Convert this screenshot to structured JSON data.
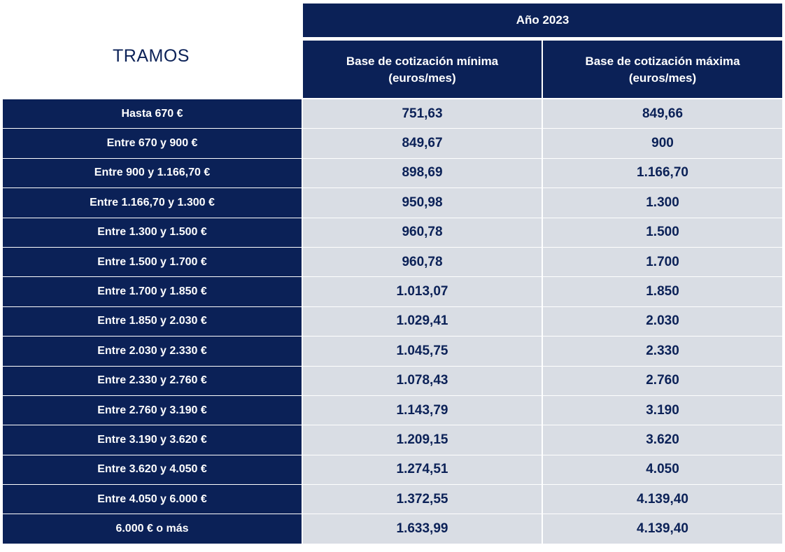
{
  "title": "TRAMOS",
  "header": {
    "year": "Año 2023",
    "min_line1": "Base de cotización mínima",
    "min_line2": "(euros/mes)",
    "max_line1": "Base de cotización máxima",
    "max_line2": "(euros/mes)"
  },
  "rows": [
    {
      "tramo": "Hasta 670 €",
      "min": "751,63",
      "max": "849,66"
    },
    {
      "tramo": "Entre 670 y 900 €",
      "min": "849,67",
      "max": "900"
    },
    {
      "tramo": "Entre 900 y 1.166,70 €",
      "min": "898,69",
      "max": "1.166,70"
    },
    {
      "tramo": "Entre 1.166,70 y 1.300 €",
      "min": "950,98",
      "max": "1.300"
    },
    {
      "tramo": "Entre 1.300 y 1.500 €",
      "min": "960,78",
      "max": "1.500"
    },
    {
      "tramo": "Entre 1.500 y 1.700 €",
      "min": "960,78",
      "max": "1.700"
    },
    {
      "tramo": "Entre 1.700 y 1.850 €",
      "min": "1.013,07",
      "max": "1.850"
    },
    {
      "tramo": "Entre 1.850 y 2.030 €",
      "min": "1.029,41",
      "max": "2.030"
    },
    {
      "tramo": "Entre 2.030 y 2.330 €",
      "min": "1.045,75",
      "max": "2.330"
    },
    {
      "tramo": "Entre 2.330 y 2.760 €",
      "min": "1.078,43",
      "max": "2.760"
    },
    {
      "tramo": "Entre 2.760 y 3.190 €",
      "min": "1.143,79",
      "max": "3.190"
    },
    {
      "tramo": "Entre 3.190 y 3.620 €",
      "min": "1.209,15",
      "max": "3.620"
    },
    {
      "tramo": "Entre 3.620 y 4.050 €",
      "min": "1.274,51",
      "max": "4.050"
    },
    {
      "tramo": "Entre 4.050 y 6.000 €",
      "min": "1.372,55",
      "max": "4.139,40"
    },
    {
      "tramo": "6.000 € o más",
      "min": "1.633,99",
      "max": "4.139,40"
    }
  ],
  "colors": {
    "header_bg": "#0b2157",
    "cell_bg": "#d9dde4",
    "value_text": "#0b2157"
  }
}
